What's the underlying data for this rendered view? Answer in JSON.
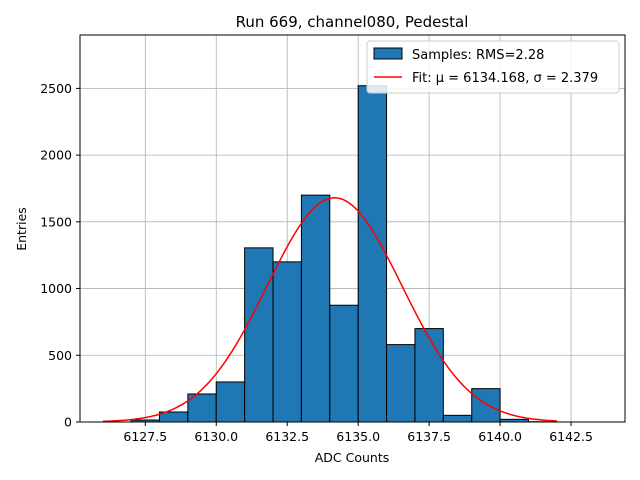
{
  "chart_data": {
    "type": "bar",
    "title": "Run 669, channel080, Pedestal",
    "xlabel": "ADC Counts",
    "ylabel": "Entries",
    "xlim": [
      6125.2,
      6144.4
    ],
    "ylim": [
      0,
      2900
    ],
    "xticks": [
      6127.5,
      6130.0,
      6132.5,
      6135.0,
      6137.5,
      6140.0,
      6142.5
    ],
    "xtick_labels": [
      "6127.5",
      "6130.0",
      "6132.5",
      "6135.0",
      "6137.5",
      "6140.0",
      "6142.5"
    ],
    "yticks": [
      0,
      500,
      1000,
      1500,
      2000,
      2500
    ],
    "ytick_labels": [
      "0",
      "500",
      "1000",
      "1500",
      "2000",
      "2500"
    ],
    "grid": true,
    "legend_position": "top-right",
    "bar_color": "#1f77b4",
    "fit_color": "#ff0000",
    "histogram": {
      "name": "Samples: RMS=2.28",
      "bin_edges": [
        6127.0,
        6128.0,
        6129.0,
        6130.0,
        6131.0,
        6132.0,
        6133.0,
        6134.0,
        6135.0,
        6136.0,
        6137.0,
        6138.0,
        6139.0,
        6140.0,
        6141.0,
        6142.0
      ],
      "counts": [
        15,
        75,
        210,
        300,
        1305,
        1200,
        1700,
        875,
        2520,
        580,
        700,
        50,
        250,
        20,
        2
      ]
    },
    "fit": {
      "name": "Fit: μ = 6134.168, σ = 2.379",
      "mu": 6134.168,
      "sigma": 2.379,
      "amplitude": 1680,
      "x_range": [
        6126.0,
        6142.0
      ]
    }
  }
}
